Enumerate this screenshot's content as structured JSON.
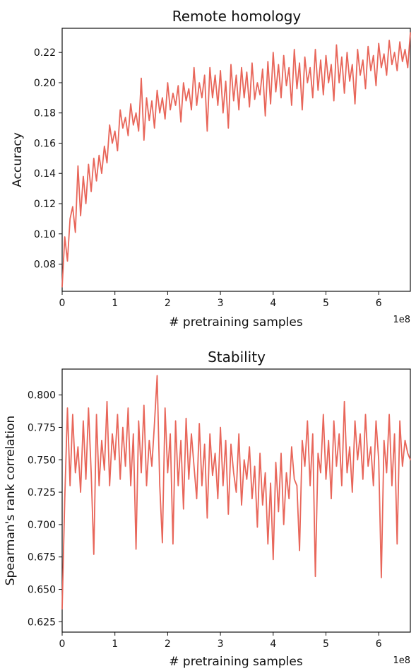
{
  "colors": {
    "series": "#e8665a",
    "axis": "#111111",
    "background": "#ffffff"
  },
  "chart_data": [
    {
      "type": "line",
      "title": "Remote homology",
      "xlabel": "# pretraining samples",
      "ylabel": "Accuracy",
      "x_offset_label": "1e8",
      "xlim": [
        0,
        6.6
      ],
      "ylim": [
        0.062,
        0.236
      ],
      "grid": false,
      "x_ticks": [
        0,
        1,
        2,
        3,
        4,
        5,
        6
      ],
      "x_tick_labels": [
        "0",
        "1",
        "2",
        "3",
        "4",
        "5",
        "6"
      ],
      "y_ticks": [
        0.08,
        0.1,
        0.12,
        0.14,
        0.16,
        0.18,
        0.2,
        0.22
      ],
      "y_tick_labels": [
        "0.08",
        "0.10",
        "0.12",
        "0.14",
        "0.16",
        "0.18",
        "0.20",
        "0.22"
      ],
      "series": [
        {
          "x": [
            0.0,
            0.05,
            0.1,
            0.15,
            0.2,
            0.25,
            0.3,
            0.35,
            0.4,
            0.45,
            0.5,
            0.55,
            0.6,
            0.65,
            0.7,
            0.75,
            0.8,
            0.85,
            0.9,
            0.95,
            1.0,
            1.05,
            1.1,
            1.15,
            1.2,
            1.25,
            1.3,
            1.35,
            1.4,
            1.45,
            1.5,
            1.55,
            1.6,
            1.65,
            1.7,
            1.75,
            1.8,
            1.85,
            1.9,
            1.95,
            2.0,
            2.05,
            2.1,
            2.15,
            2.2,
            2.25,
            2.3,
            2.35,
            2.4,
            2.45,
            2.5,
            2.55,
            2.6,
            2.65,
            2.7,
            2.75,
            2.8,
            2.85,
            2.9,
            2.95,
            3.0,
            3.05,
            3.1,
            3.15,
            3.2,
            3.25,
            3.3,
            3.35,
            3.4,
            3.45,
            3.5,
            3.55,
            3.6,
            3.65,
            3.7,
            3.75,
            3.8,
            3.85,
            3.9,
            3.95,
            4.0,
            4.05,
            4.1,
            4.15,
            4.2,
            4.25,
            4.3,
            4.35,
            4.4,
            4.45,
            4.5,
            4.55,
            4.6,
            4.65,
            4.7,
            4.75,
            4.8,
            4.85,
            4.9,
            4.95,
            5.0,
            5.05,
            5.1,
            5.15,
            5.2,
            5.25,
            5.3,
            5.35,
            5.4,
            5.45,
            5.5,
            5.55,
            5.6,
            5.65,
            5.7,
            5.75,
            5.8,
            5.85,
            5.9,
            5.95,
            6.0,
            6.05,
            6.1,
            6.15,
            6.2,
            6.25,
            6.3,
            6.35,
            6.4,
            6.45,
            6.5,
            6.55,
            6.6
          ],
          "values": [
            0.065,
            0.098,
            0.082,
            0.11,
            0.118,
            0.101,
            0.145,
            0.112,
            0.138,
            0.12,
            0.146,
            0.128,
            0.15,
            0.135,
            0.152,
            0.14,
            0.158,
            0.147,
            0.172,
            0.16,
            0.168,
            0.155,
            0.182,
            0.17,
            0.177,
            0.165,
            0.186,
            0.172,
            0.18,
            0.168,
            0.203,
            0.162,
            0.19,
            0.175,
            0.188,
            0.17,
            0.195,
            0.18,
            0.19,
            0.176,
            0.2,
            0.182,
            0.193,
            0.185,
            0.198,
            0.174,
            0.2,
            0.188,
            0.196,
            0.182,
            0.21,
            0.185,
            0.2,
            0.19,
            0.205,
            0.168,
            0.21,
            0.19,
            0.205,
            0.185,
            0.208,
            0.18,
            0.201,
            0.17,
            0.212,
            0.188,
            0.205,
            0.182,
            0.21,
            0.19,
            0.207,
            0.184,
            0.213,
            0.189,
            0.2,
            0.192,
            0.209,
            0.178,
            0.214,
            0.186,
            0.22,
            0.194,
            0.212,
            0.19,
            0.218,
            0.198,
            0.21,
            0.185,
            0.222,
            0.196,
            0.213,
            0.182,
            0.217,
            0.2,
            0.21,
            0.19,
            0.222,
            0.195,
            0.215,
            0.192,
            0.218,
            0.2,
            0.212,
            0.188,
            0.225,
            0.2,
            0.217,
            0.193,
            0.22,
            0.201,
            0.212,
            0.186,
            0.222,
            0.205,
            0.215,
            0.196,
            0.224,
            0.208,
            0.218,
            0.198,
            0.226,
            0.21,
            0.219,
            0.205,
            0.228,
            0.212,
            0.22,
            0.208,
            0.227,
            0.214,
            0.222,
            0.21,
            0.233
          ]
        }
      ]
    },
    {
      "type": "line",
      "title": "Stability",
      "xlabel": "# pretraining samples",
      "ylabel": "Spearman's rank correlation",
      "x_offset_label": "1e8",
      "xlim": [
        0,
        6.6
      ],
      "ylim": [
        0.617,
        0.82
      ],
      "grid": false,
      "x_ticks": [
        0,
        1,
        2,
        3,
        4,
        5,
        6
      ],
      "x_tick_labels": [
        "0",
        "1",
        "2",
        "3",
        "4",
        "5",
        "6"
      ],
      "y_ticks": [
        0.625,
        0.65,
        0.675,
        0.7,
        0.725,
        0.75,
        0.775,
        0.8
      ],
      "y_tick_labels": [
        "0.625",
        "0.650",
        "0.675",
        "0.700",
        "0.725",
        "0.750",
        "0.775",
        "0.800"
      ],
      "series": [
        {
          "x": [
            0.0,
            0.05,
            0.1,
            0.15,
            0.2,
            0.25,
            0.3,
            0.35,
            0.4,
            0.45,
            0.5,
            0.55,
            0.6,
            0.65,
            0.7,
            0.75,
            0.8,
            0.85,
            0.9,
            0.95,
            1.0,
            1.05,
            1.1,
            1.15,
            1.2,
            1.25,
            1.3,
            1.35,
            1.4,
            1.45,
            1.5,
            1.55,
            1.6,
            1.65,
            1.7,
            1.75,
            1.8,
            1.85,
            1.9,
            1.95,
            2.0,
            2.05,
            2.1,
            2.15,
            2.2,
            2.25,
            2.3,
            2.35,
            2.4,
            2.45,
            2.5,
            2.55,
            2.6,
            2.65,
            2.7,
            2.75,
            2.8,
            2.85,
            2.9,
            2.95,
            3.0,
            3.05,
            3.1,
            3.15,
            3.2,
            3.25,
            3.3,
            3.35,
            3.4,
            3.45,
            3.5,
            3.55,
            3.6,
            3.65,
            3.7,
            3.75,
            3.8,
            3.85,
            3.9,
            3.95,
            4.0,
            4.05,
            4.1,
            4.15,
            4.2,
            4.25,
            4.3,
            4.35,
            4.4,
            4.45,
            4.5,
            4.55,
            4.6,
            4.65,
            4.7,
            4.75,
            4.8,
            4.85,
            4.9,
            4.95,
            5.0,
            5.05,
            5.1,
            5.15,
            5.2,
            5.25,
            5.3,
            5.35,
            5.4,
            5.45,
            5.5,
            5.55,
            5.6,
            5.65,
            5.7,
            5.75,
            5.8,
            5.85,
            5.9,
            5.95,
            6.0,
            6.05,
            6.1,
            6.15,
            6.2,
            6.25,
            6.3,
            6.35,
            6.4,
            6.45,
            6.5,
            6.55,
            6.6
          ],
          "values": [
            0.635,
            0.72,
            0.79,
            0.73,
            0.785,
            0.74,
            0.76,
            0.725,
            0.78,
            0.735,
            0.79,
            0.74,
            0.677,
            0.785,
            0.73,
            0.765,
            0.742,
            0.795,
            0.73,
            0.77,
            0.75,
            0.785,
            0.735,
            0.775,
            0.745,
            0.79,
            0.73,
            0.77,
            0.681,
            0.78,
            0.74,
            0.792,
            0.73,
            0.765,
            0.745,
            0.778,
            0.815,
            0.73,
            0.686,
            0.79,
            0.74,
            0.77,
            0.685,
            0.78,
            0.73,
            0.765,
            0.712,
            0.782,
            0.735,
            0.77,
            0.745,
            0.72,
            0.778,
            0.73,
            0.762,
            0.705,
            0.77,
            0.738,
            0.755,
            0.72,
            0.775,
            0.73,
            0.765,
            0.708,
            0.762,
            0.74,
            0.725,
            0.77,
            0.715,
            0.75,
            0.735,
            0.76,
            0.72,
            0.745,
            0.698,
            0.755,
            0.715,
            0.74,
            0.685,
            0.732,
            0.673,
            0.748,
            0.71,
            0.755,
            0.7,
            0.74,
            0.72,
            0.76,
            0.735,
            0.73,
            0.68,
            0.765,
            0.745,
            0.78,
            0.73,
            0.77,
            0.66,
            0.755,
            0.74,
            0.785,
            0.735,
            0.765,
            0.72,
            0.78,
            0.745,
            0.77,
            0.73,
            0.795,
            0.74,
            0.76,
            0.725,
            0.78,
            0.75,
            0.77,
            0.735,
            0.785,
            0.745,
            0.76,
            0.73,
            0.78,
            0.75,
            0.659,
            0.765,
            0.74,
            0.785,
            0.73,
            0.77,
            0.685,
            0.78,
            0.745,
            0.765,
            0.755,
            0.75
          ]
        }
      ]
    }
  ]
}
